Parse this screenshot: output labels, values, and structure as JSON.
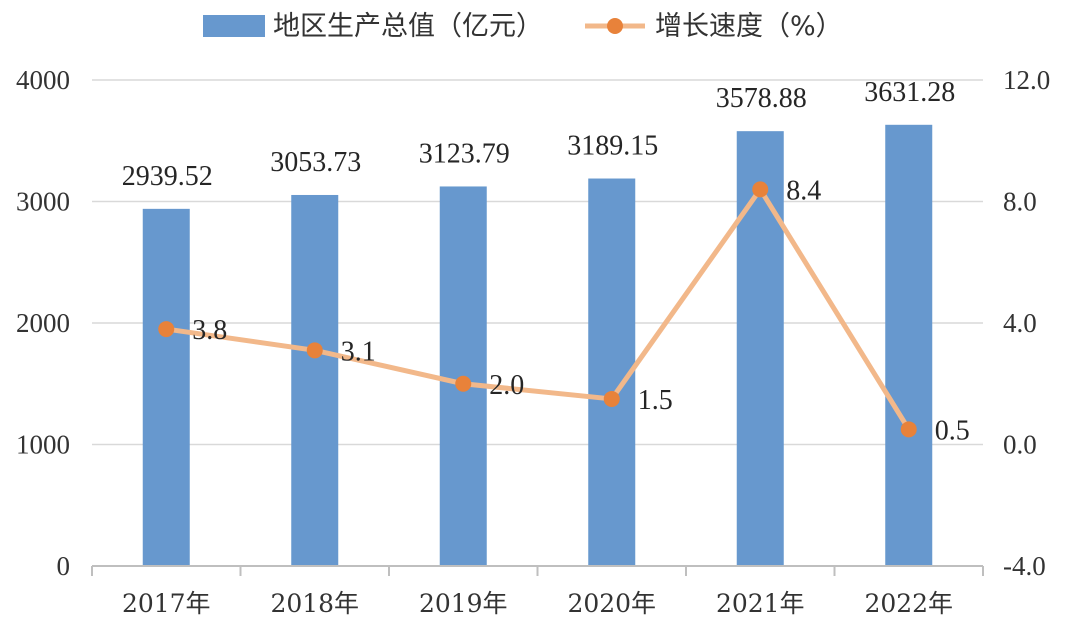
{
  "chart_data": {
    "type": "bar",
    "categories": [
      "2017年",
      "2018年",
      "2019年",
      "2020年",
      "2021年",
      "2022年"
    ],
    "series": [
      {
        "name": "地区生产总值（亿元）",
        "type": "bar",
        "axis": "left",
        "color": "#6798CE",
        "values": [
          2939.52,
          3053.73,
          3123.79,
          3189.15,
          3578.88,
          3631.28
        ],
        "labels": [
          "2939.52",
          "3053.73",
          "3123.79",
          "3189.15",
          "3578.88",
          "3631.28"
        ]
      },
      {
        "name": "增长速度（%）",
        "type": "line",
        "axis": "right",
        "color": "#F2B88A",
        "marker_color": "#E8823A",
        "values": [
          3.8,
          3.1,
          2.0,
          1.5,
          8.4,
          0.5
        ],
        "labels": [
          "3.8",
          "3.1",
          "2.0",
          "1.5",
          "8.4",
          "0.5"
        ]
      }
    ],
    "y_left": {
      "range": [
        0,
        4000
      ],
      "ticks": [
        0,
        1000,
        2000,
        3000,
        4000
      ],
      "tick_labels": [
        "0",
        "1000",
        "2000",
        "3000",
        "4000"
      ]
    },
    "y_right": {
      "range": [
        -4.0,
        12.0
      ],
      "ticks": [
        -4.0,
        0.0,
        4.0,
        8.0,
        12.0
      ],
      "tick_labels": [
        "-4.0",
        "0.0",
        "4.0",
        "8.0",
        "12.0"
      ]
    },
    "grid": true,
    "legend_position": "top"
  }
}
